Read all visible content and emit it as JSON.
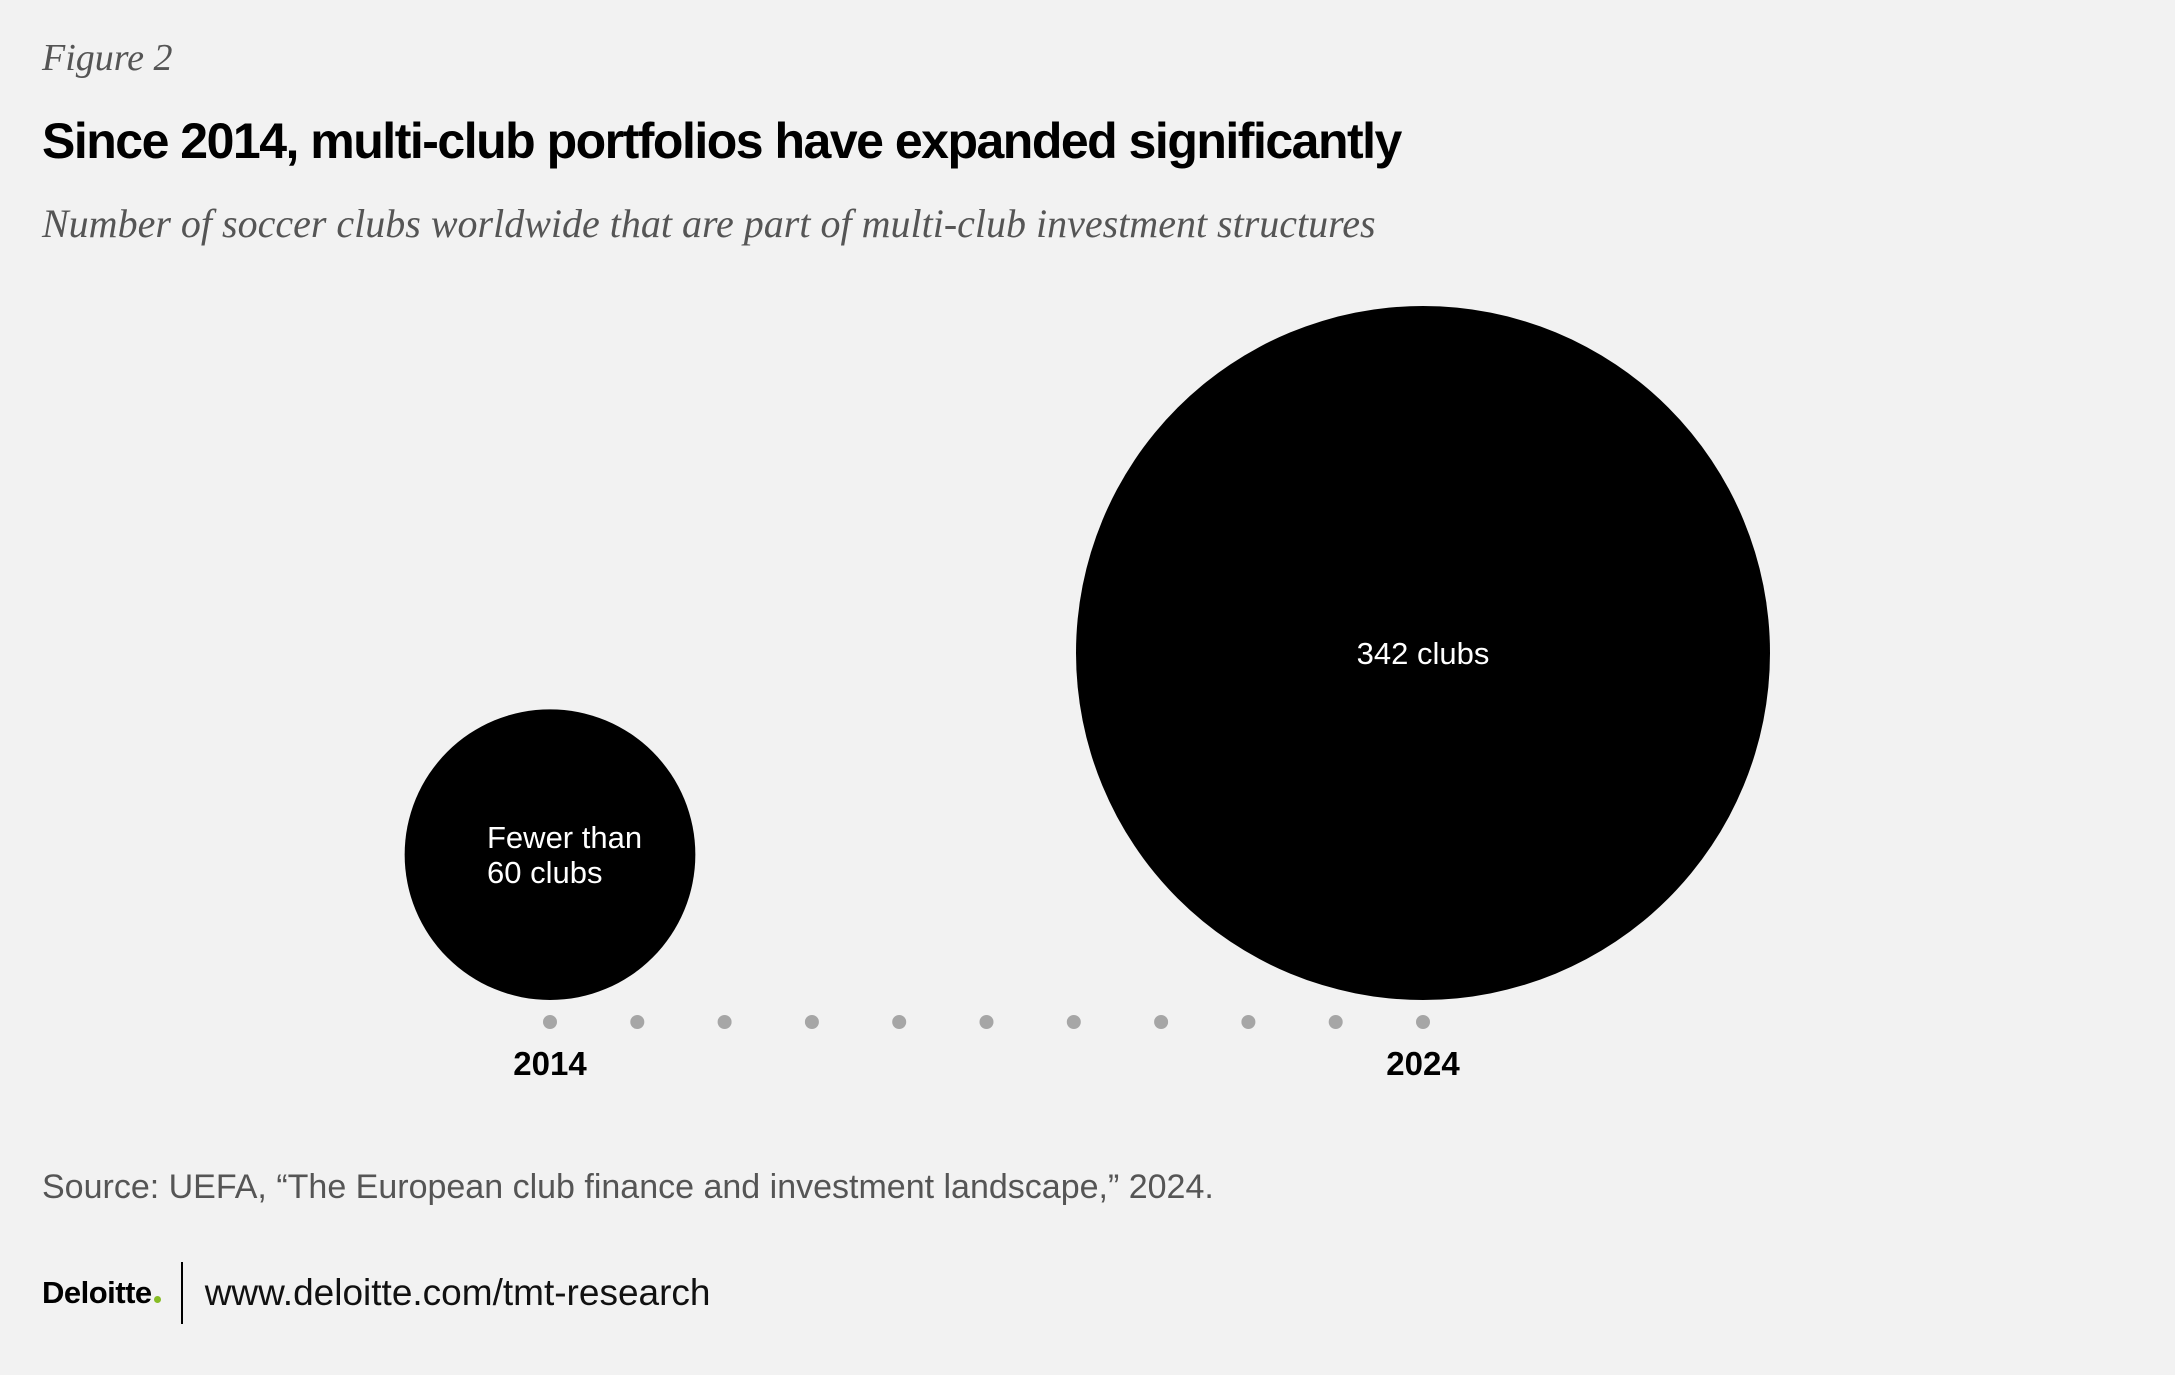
{
  "header": {
    "figure_label": "Figure 2",
    "title": "Since 2014, multi-club portfolios have expanded significantly",
    "subtitle": "Number of soccer clubs worldwide that are part of multi-club investment structures"
  },
  "chart_data": {
    "type": "bubble",
    "categories": [
      "2014",
      "2024"
    ],
    "values": [
      60,
      342
    ],
    "labels": [
      [
        "Fewer than",
        "60 clubs"
      ],
      [
        "342 clubs"
      ]
    ],
    "timeline_dots": 11,
    "colors": {
      "bubble": "#000000",
      "bubble_text": "#ffffff",
      "dots": "#a6a6a6",
      "axis_text": "#000000"
    }
  },
  "footer": {
    "source": "Source: UEFA, “The European club finance and investment landscape,” 2024.",
    "brand": "Deloitte",
    "url": "www.deloitte.com/tmt-research",
    "brand_dot_color": "#86bc25"
  }
}
